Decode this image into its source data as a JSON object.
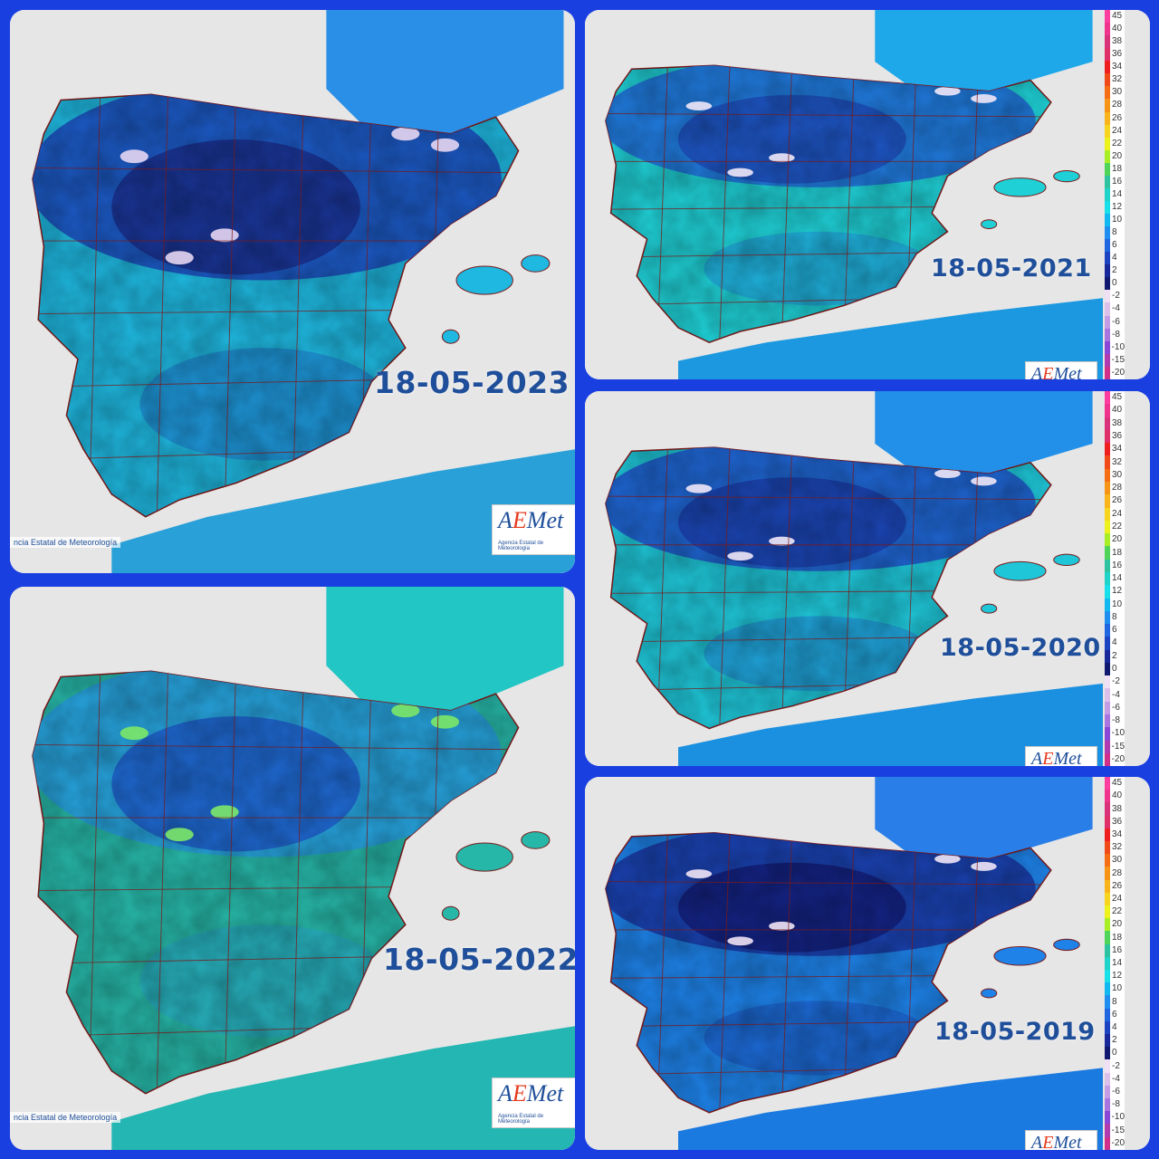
{
  "panels": [
    {
      "id": "p2023",
      "date": "18-05-2023",
      "credit": "ncia Estatal de Meteorología",
      "scheme": "cold-n"
    },
    {
      "id": "p2022",
      "date": "18-05-2022",
      "credit": "ncia Estatal de Meteorología",
      "scheme": "warm"
    },
    {
      "id": "p2021",
      "date": "18-05-2021",
      "scheme": "mild"
    },
    {
      "id": "p2020",
      "date": "18-05-2020",
      "scheme": "cool"
    },
    {
      "id": "p2019",
      "date": "18-05-2019",
      "scheme": "cold"
    }
  ],
  "logo": {
    "name_a": "A",
    "name_e": "E",
    "name_b": "Met",
    "subtitle": "Agencia Estatal de Meteorología"
  },
  "legend": {
    "items": [
      {
        "label": "45",
        "color": "#ff3da0"
      },
      {
        "label": "40",
        "color": "#f0338c"
      },
      {
        "label": "38",
        "color": "#d9317a"
      },
      {
        "label": "36",
        "color": "#e0306a"
      },
      {
        "label": "34",
        "color": "#f01f1f"
      },
      {
        "label": "32",
        "color": "#f04a18"
      },
      {
        "label": "30",
        "color": "#f56e14"
      },
      {
        "label": "28",
        "color": "#f79416"
      },
      {
        "label": "26",
        "color": "#f8b41a"
      },
      {
        "label": "24",
        "color": "#f7d51e"
      },
      {
        "label": "22",
        "color": "#eef21c"
      },
      {
        "label": "20",
        "color": "#a8ee24"
      },
      {
        "label": "18",
        "color": "#4fd45a"
      },
      {
        "label": "16",
        "color": "#2ec3a0"
      },
      {
        "label": "14",
        "color": "#20d3c8"
      },
      {
        "label": "12",
        "color": "#18e0e8"
      },
      {
        "label": "10",
        "color": "#12b8f0"
      },
      {
        "label": "8",
        "color": "#1e8ef0"
      },
      {
        "label": "6",
        "color": "#1f66e0"
      },
      {
        "label": "4",
        "color": "#1d44c0"
      },
      {
        "label": "2",
        "color": "#18289a"
      },
      {
        "label": "0",
        "color": "#101870"
      },
      {
        "label": "-2",
        "color": "#f0e0f4"
      },
      {
        "label": "-4",
        "color": "#dcc0ec"
      },
      {
        "label": "-6",
        "color": "#c49ce6"
      },
      {
        "label": "-8",
        "color": "#a874e0"
      },
      {
        "label": "-10",
        "color": "#8a46d6"
      },
      {
        "label": "-15",
        "color": "#b03ab0"
      },
      {
        "label": "-20",
        "color": "#d0308a"
      }
    ]
  }
}
